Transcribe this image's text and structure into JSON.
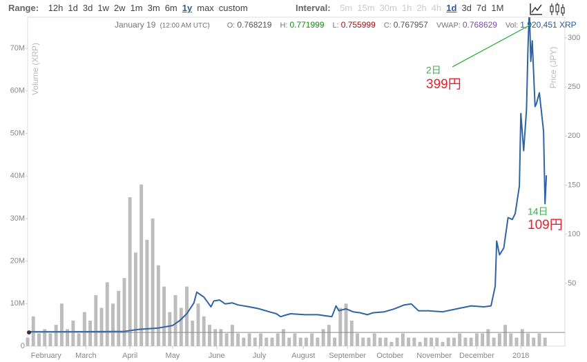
{
  "ui": {
    "range": {
      "label": "Range:",
      "options": [
        "12h",
        "1d",
        "3d",
        "1w",
        "2w",
        "1m",
        "3m",
        "6m",
        "1y",
        "max",
        "custom"
      ],
      "selected": 8
    },
    "interval": {
      "label": "Interval:",
      "options": [
        "5m",
        "15m",
        "30m",
        "1h",
        "2h",
        "4h",
        "1d",
        "3d",
        "7d",
        "1M"
      ],
      "selected": 6,
      "disabled": [
        0,
        1,
        2,
        3,
        4,
        5
      ]
    },
    "quote": {
      "date": "January 19",
      "time": "(12:00 AM UTC)",
      "fields": [
        {
          "label": "O:",
          "value": 0.768219,
          "color": "#555"
        },
        {
          "label": "H:",
          "value": 0.771999,
          "color": "#1a8a1a"
        },
        {
          "label": "L:",
          "value": 0.755999,
          "color": "#a01010"
        },
        {
          "label": "C:",
          "value": 0.767957,
          "color": "#555"
        },
        {
          "label": "VWAP:",
          "value": 0.768629,
          "color": "#7a4fa8"
        },
        {
          "label": "Vol:",
          "value": "1,920,451 XRP",
          "color": "#2a5aa0"
        }
      ]
    }
  },
  "chart_data": {
    "type": "combo",
    "y_label": "Volume (XRP)",
    "y2_label": "Price (JPY)",
    "xlim": [
      0,
      378
    ],
    "xticks": [
      {
        "value": 13,
        "label": "February"
      },
      {
        "value": 41,
        "label": "March"
      },
      {
        "value": 72,
        "label": "April"
      },
      {
        "value": 102,
        "label": "May"
      },
      {
        "value": 133,
        "label": "June"
      },
      {
        "value": 163,
        "label": "July"
      },
      {
        "value": 194,
        "label": "August"
      },
      {
        "value": 225,
        "label": "September"
      },
      {
        "value": 255,
        "label": "October"
      },
      {
        "value": 286,
        "label": "November"
      },
      {
        "value": 316,
        "label": "December"
      },
      {
        "value": 347,
        "label": "2018"
      }
    ],
    "ylim": [
      0,
      77300000
    ],
    "yticks": [
      0,
      {
        "value": 10000000,
        "label": "10M"
      },
      {
        "value": 20000000,
        "label": "20M"
      },
      {
        "value": 30000000,
        "label": "30M"
      },
      {
        "value": 40000000,
        "label": "40M"
      },
      {
        "value": 50000000,
        "label": "50M"
      },
      {
        "value": 60000000,
        "label": "60M"
      },
      {
        "value": 70000000,
        "label": "70M"
      }
    ],
    "y2lim": [
      -14,
      321
    ],
    "y2ticks": [
      50,
      100,
      150,
      200,
      250,
      300
    ],
    "series": [
      {
        "type": "bar",
        "color": "#bdbdbd",
        "x": [
          0,
          4,
          8,
          12,
          16,
          20,
          24,
          28,
          32,
          36,
          40,
          44,
          48,
          52,
          56,
          60,
          64,
          68,
          72,
          76,
          80,
          84,
          88,
          92,
          96,
          100,
          104,
          108,
          112,
          116,
          120,
          124,
          128,
          132,
          136,
          140,
          144,
          148,
          152,
          156,
          160,
          164,
          168,
          172,
          176,
          180,
          184,
          188,
          192,
          196,
          200,
          204,
          208,
          212,
          216,
          220,
          224,
          228,
          232,
          236,
          240,
          244,
          248,
          252,
          256,
          260,
          264,
          268,
          272,
          276,
          280,
          284,
          288,
          292,
          296,
          300,
          304,
          308,
          312,
          316,
          320,
          324,
          328,
          332,
          336,
          340,
          344,
          348,
          352,
          356,
          360,
          364
        ],
        "values": [
          2000000,
          7000000,
          3000000,
          4000000,
          3000000,
          5000000,
          10000000,
          4000000,
          6000000,
          3000000,
          8000000,
          6000000,
          12000000,
          9000000,
          15000000,
          10000000,
          13000000,
          16000000,
          35000000,
          22000000,
          38000000,
          25000000,
          30000000,
          19000000,
          14000000,
          8000000,
          12000000,
          9000000,
          14000000,
          6000000,
          10000000,
          7000000,
          5000000,
          4000000,
          4000000,
          3000000,
          5000000,
          3000000,
          2000000,
          3000000,
          2000000,
          3000000,
          2000000,
          2000000,
          3000000,
          4000000,
          2000000,
          3000000,
          2000000,
          2000000,
          3000000,
          2000000,
          4000000,
          5000000,
          2000000,
          9000000,
          10000000,
          6000000,
          3000000,
          2000000,
          2000000,
          3000000,
          2000000,
          2000000,
          1000000,
          2000000,
          3000000,
          2000000,
          2000000,
          1000000,
          2000000,
          2000000,
          2000000,
          1000000,
          2000000,
          2000000,
          3000000,
          2000000,
          2000000,
          3000000,
          3000000,
          4000000,
          2000000,
          3000000,
          5000000,
          3000000,
          2000000,
          4000000,
          3000000,
          2000000,
          3000000,
          2000000
        ]
      },
      {
        "type": "line",
        "axis": "y2",
        "color": "#2e63a6",
        "x": [
          0,
          29,
          54,
          68,
          78,
          92,
          102,
          107,
          112,
          117,
          119,
          122,
          124,
          127,
          129,
          131,
          135,
          139,
          144,
          148,
          156,
          163,
          170,
          175,
          178,
          180,
          185,
          195,
          204,
          214,
          217,
          219,
          224,
          229,
          234,
          239,
          243,
          251,
          258,
          265,
          270,
          275,
          282,
          292,
          302,
          312,
          321,
          326,
          329,
          330,
          332,
          335,
          338,
          341,
          343,
          346,
          347,
          349,
          351,
          352,
          353,
          354,
          355,
          357,
          358,
          360,
          363,
          364,
          365
        ],
        "values": [
          0.7,
          0.7,
          0.8,
          1.0,
          3,
          4.5,
          7,
          12,
          19,
          30,
          41,
          38,
          36,
          30,
          26,
          32,
          33,
          29,
          30,
          28,
          26,
          24,
          21,
          19,
          16,
          17,
          19,
          18,
          18,
          16,
          27,
          22,
          24,
          21,
          20,
          18,
          20,
          21,
          24,
          28,
          29,
          22,
          22,
          21,
          24,
          27,
          26,
          27,
          47,
          93,
          79,
          86,
          117,
          115,
          121,
          149,
          223,
          185,
          227,
          289,
          330,
          276,
          297,
          230,
          233,
          244,
          205,
          131,
          160
        ]
      }
    ],
    "annotations": [
      {
        "day": "2日",
        "price": "399円"
      },
      {
        "day": "14日",
        "price": "109円"
      }
    ]
  }
}
